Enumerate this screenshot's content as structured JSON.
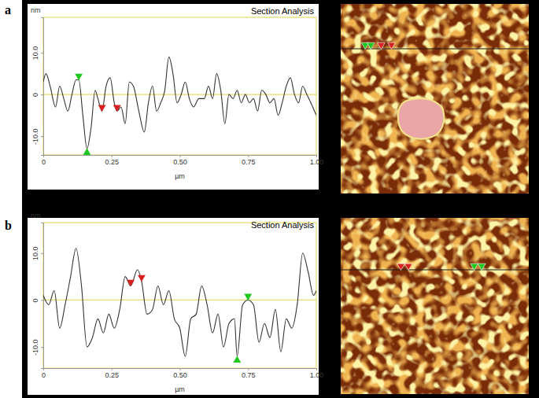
{
  "chart_data": [
    {
      "type": "line",
      "panel_label": "a",
      "title": "Section Analysis",
      "y_label": "nm",
      "x_label": "µm",
      "x": [
        0,
        0.01,
        0.025,
        0.045,
        0.06,
        0.075,
        0.09,
        0.105,
        0.12,
        0.13,
        0.145,
        0.16,
        0.175,
        0.19,
        0.2,
        0.215,
        0.23,
        0.245,
        0.26,
        0.27,
        0.285,
        0.3,
        0.315,
        0.33,
        0.35,
        0.37,
        0.385,
        0.4,
        0.415,
        0.43,
        0.445,
        0.46,
        0.475,
        0.49,
        0.505,
        0.52,
        0.535,
        0.55,
        0.57,
        0.59,
        0.605,
        0.62,
        0.635,
        0.65,
        0.665,
        0.68,
        0.695,
        0.71,
        0.725,
        0.74,
        0.755,
        0.77,
        0.785,
        0.8,
        0.815,
        0.83,
        0.845,
        0.86,
        0.875,
        0.89,
        0.905,
        0.92,
        0.935,
        0.95,
        0.965,
        0.98,
        1.0
      ],
      "series": [
        {
          "color": "#333333",
          "values": [
            3,
            5,
            2,
            -3,
            2,
            -1,
            -4,
            0,
            3.5,
            3.5,
            -5,
            -13,
            -8,
            1,
            -1,
            -4,
            2,
            4,
            -2,
            -4,
            -3,
            -7,
            3,
            2,
            -4,
            -9,
            -2,
            2,
            -4,
            -2,
            1,
            9,
            5,
            -2,
            0,
            3,
            -1,
            -3,
            -1,
            -1,
            2,
            -1,
            5,
            1,
            -7,
            0,
            -1,
            1,
            -2,
            0,
            -2,
            -1,
            -4,
            1,
            0,
            -2,
            -1,
            -5,
            -2,
            2,
            4,
            0,
            -2,
            2,
            0,
            -2,
            -5
          ]
        }
      ],
      "cursors": [
        {
          "x": 0.13,
          "y": 3.5,
          "color": "#1fc81f",
          "marker": "triangle-down"
        },
        {
          "x": 0.16,
          "y": -13,
          "color": "#1fc81f",
          "marker": "triangle-up"
        },
        {
          "x": 0.215,
          "y": -4,
          "color": "#d82020",
          "marker": "triangle-down"
        },
        {
          "x": 0.27,
          "y": -4,
          "color": "#d82020",
          "marker": "triangle-down"
        }
      ],
      "xlim": [
        0,
        1
      ],
      "xticks": [
        0,
        0.25,
        {
          "value": 0.5,
          "label": "0.50"
        },
        0.75,
        {
          "value": 1,
          "label": "1.00"
        }
      ],
      "ylim": [
        -14.5,
        18.5
      ],
      "yticks": [
        {
          "value": -10,
          "label": "-10.0"
        },
        0,
        {
          "value": 10,
          "label": "10.0"
        }
      ]
    },
    {
      "type": "line",
      "panel_label": "b",
      "title": "Section Analysis",
      "y_label": "nm",
      "x_label": "µm",
      "x": [
        0,
        0.02,
        0.04,
        0.06,
        0.08,
        0.1,
        0.12,
        0.14,
        0.16,
        0.18,
        0.2,
        0.22,
        0.24,
        0.26,
        0.28,
        0.3,
        0.32,
        0.345,
        0.36,
        0.38,
        0.4,
        0.42,
        0.44,
        0.46,
        0.48,
        0.5,
        0.52,
        0.54,
        0.56,
        0.58,
        0.6,
        0.62,
        0.64,
        0.66,
        0.68,
        0.7,
        0.71,
        0.73,
        0.75,
        0.77,
        0.79,
        0.81,
        0.83,
        0.85,
        0.87,
        0.89,
        0.91,
        0.93,
        0.95,
        0.97,
        0.99,
        1.0
      ],
      "series": [
        {
          "color": "#333333",
          "values": [
            1,
            -1,
            2,
            -6,
            -1,
            5,
            11,
            3,
            -10,
            -8,
            -4,
            -7,
            -3,
            -6,
            -2,
            5,
            3,
            6.5,
            4,
            -3,
            -2,
            3,
            -1,
            2,
            -4,
            -6,
            -12,
            -4,
            -3,
            3,
            -1,
            -7,
            -3,
            -10,
            -5,
            -4,
            -12,
            -1,
            0,
            -1,
            -9,
            -5,
            -8,
            -2,
            -11,
            -4,
            -6,
            -1,
            10,
            6,
            1,
            2
          ]
        }
      ],
      "cursors": [
        {
          "x": 0.32,
          "y": 3,
          "color": "#d82020",
          "marker": "triangle-down"
        },
        {
          "x": 0.36,
          "y": 4,
          "color": "#d82020",
          "marker": "triangle-down"
        },
        {
          "x": 0.71,
          "y": -12,
          "color": "#1fc81f",
          "marker": "triangle-up"
        },
        {
          "x": 0.75,
          "y": 0,
          "color": "#1fc81f",
          "marker": "triangle-down"
        }
      ],
      "xlim": [
        0,
        1
      ],
      "xticks": [
        0,
        0.25,
        {
          "value": 0.5,
          "label": "0.50"
        },
        0.75,
        {
          "value": 1,
          "label": "1.00"
        }
      ],
      "ylim": [
        -14.5,
        16.5
      ],
      "yticks": [
        {
          "value": -10,
          "label": "-10.0"
        },
        0,
        {
          "value": 10,
          "label": "10.0"
        }
      ]
    }
  ]
}
